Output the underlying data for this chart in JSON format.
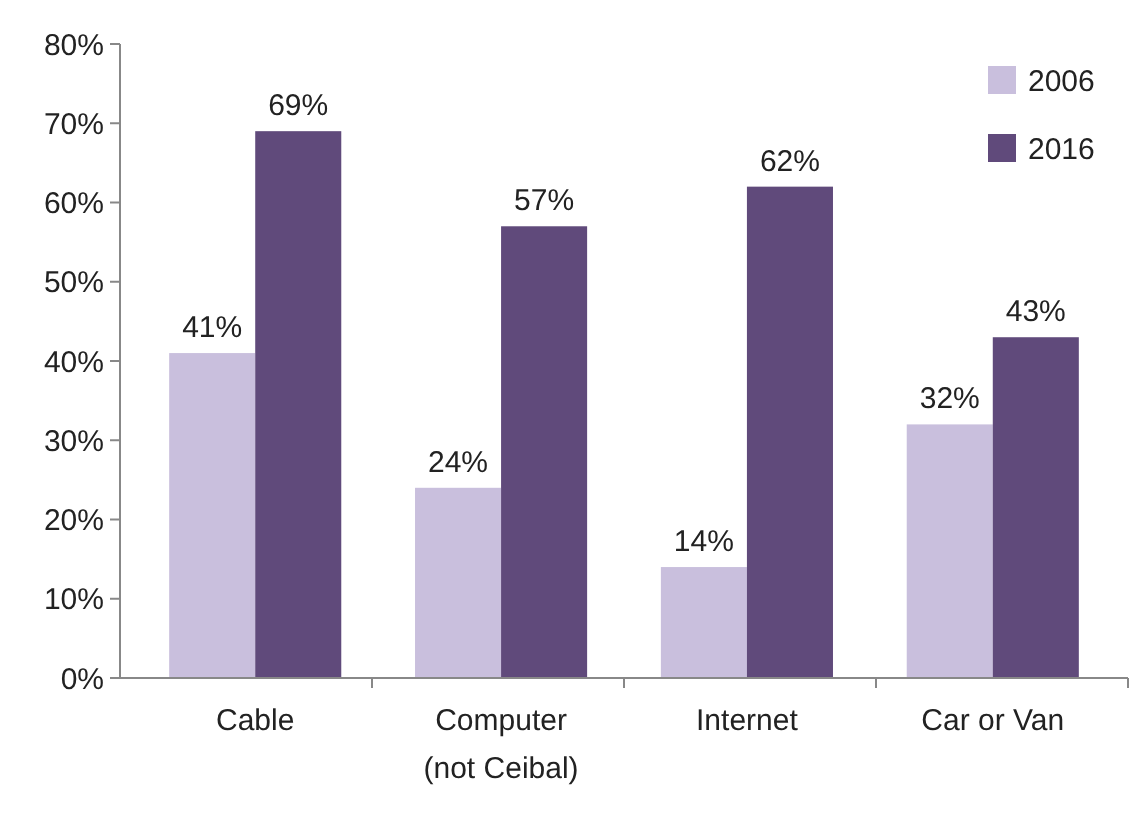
{
  "chart_data": {
    "type": "bar",
    "categories": [
      "Cable",
      "Computer\n(not Ceibal)",
      "Internet",
      "Car or Van"
    ],
    "series": [
      {
        "name": "2006",
        "color": "#c9bfdd",
        "values": [
          41,
          24,
          14,
          32
        ],
        "value_labels": [
          "41%",
          "24%",
          "14%",
          "32%"
        ]
      },
      {
        "name": "2016",
        "color": "#604a7b",
        "values": [
          69,
          57,
          62,
          43
        ],
        "value_labels": [
          "69%",
          "57%",
          "62%",
          "43%"
        ]
      }
    ],
    "ylim": [
      0,
      80
    ],
    "yticks": [
      {
        "value": 0,
        "label": "0%"
      },
      {
        "value": 10,
        "label": "10%"
      },
      {
        "value": 20,
        "label": "20%"
      },
      {
        "value": 30,
        "label": "30%"
      },
      {
        "value": 40,
        "label": "40%"
      },
      {
        "value": 50,
        "label": "50%"
      },
      {
        "value": 60,
        "label": "60%"
      },
      {
        "value": 70,
        "label": "70%"
      },
      {
        "value": 80,
        "label": "80%"
      }
    ],
    "legend": "top right"
  }
}
